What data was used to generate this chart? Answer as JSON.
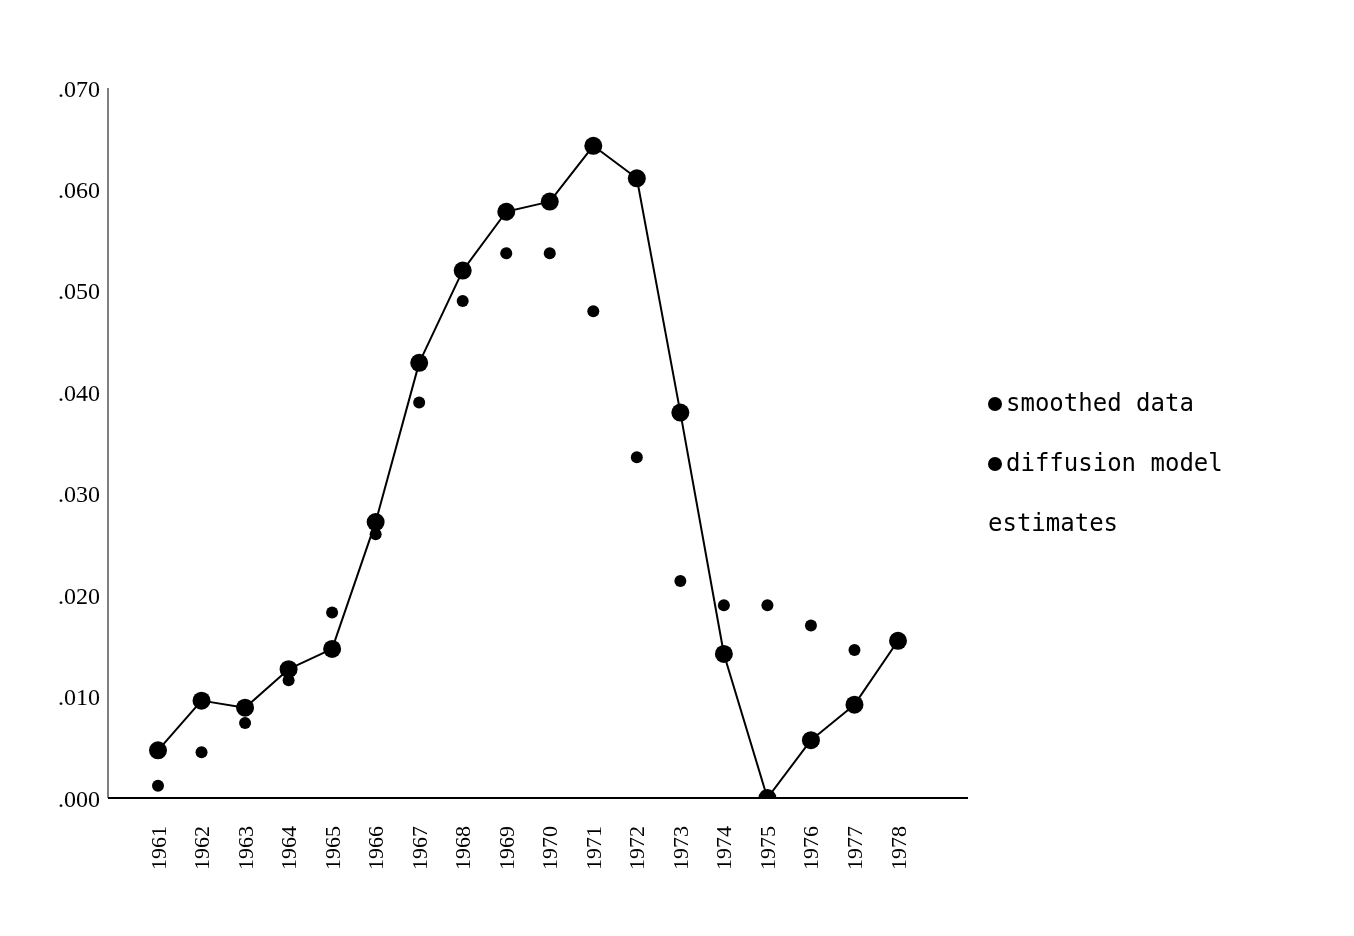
{
  "chart_data": {
    "type": "line",
    "categories": [
      "1961",
      "1962",
      "1963",
      "1964",
      "1965",
      "1966",
      "1967",
      "1968",
      "1969",
      "1970",
      "1971",
      "1972",
      "1973",
      "1974",
      "1975",
      "1976",
      "1977",
      "1978"
    ],
    "series": [
      {
        "name": "smoothed data",
        "color": "#000000",
        "marker": "circle",
        "values": [
          0.0047,
          0.0096,
          0.0089,
          0.0127,
          0.0147,
          0.0272,
          0.0429,
          0.052,
          0.0578,
          0.0588,
          0.0643,
          0.0611,
          0.038,
          0.0142,
          0.0,
          0.0057,
          0.0092,
          0.0155
        ]
      },
      {
        "name": "diffusion model estimates",
        "type": "scatter",
        "color": "#000000",
        "marker": "circle",
        "values": [
          0.0012,
          0.0045,
          0.0074,
          0.0116,
          0.0183,
          0.026,
          0.039,
          0.049,
          0.0537,
          0.0537,
          0.048,
          0.0336,
          0.0214,
          0.019,
          0.019,
          0.017,
          0.0146,
          null
        ]
      }
    ],
    "ylim": [
      0,
      0.07
    ],
    "yticks": [
      {
        "value": 0,
        "label": ".000"
      },
      {
        "value": 0.01,
        "label": ".010"
      },
      {
        "value": 0.02,
        "label": ".020"
      },
      {
        "value": 0.03,
        "label": ".030"
      },
      {
        "value": 0.04,
        "label": ".040"
      },
      {
        "value": 0.05,
        "label": ".050"
      },
      {
        "value": 0.06,
        "label": ".060"
      },
      {
        "value": 0.07,
        "label": ".070"
      }
    ],
    "legend": "right",
    "grid": false
  }
}
